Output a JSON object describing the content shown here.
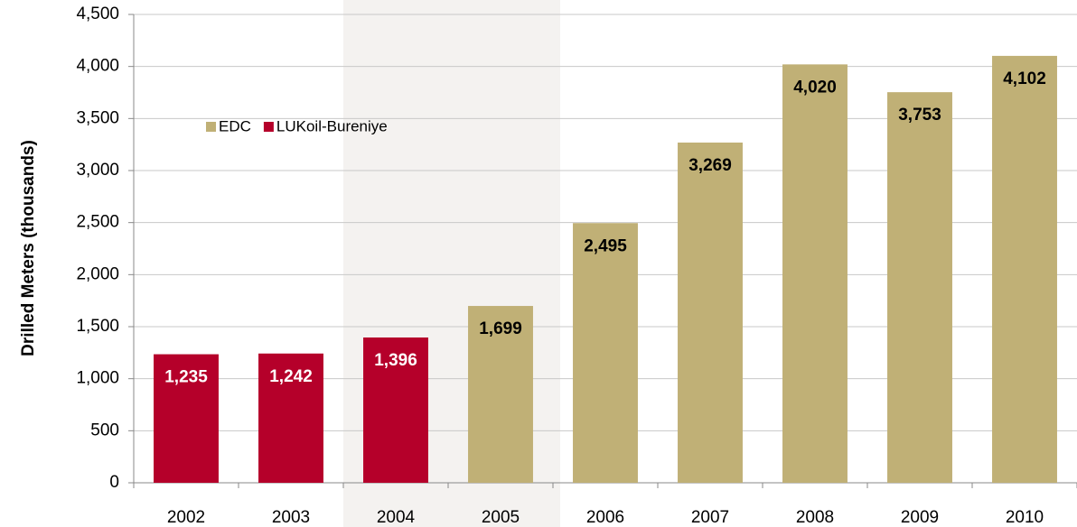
{
  "chart_data": {
    "type": "bar",
    "y_label": "Drilled Meters  (thousands)",
    "categories": [
      "2002",
      "2003",
      "2004",
      "2005",
      "2006",
      "2007",
      "2008",
      "2009",
      "2010"
    ],
    "series": [
      {
        "name": "EDC",
        "color": "#c0b076",
        "label_color": "#000000",
        "values": [
          null,
          null,
          null,
          1699,
          2495,
          3269,
          4020,
          3753,
          4102
        ],
        "value_labels": [
          null,
          null,
          null,
          "1,699",
          "2,495",
          "3,269",
          "4,020",
          "3,753",
          "4,102"
        ]
      },
      {
        "name": "LUKoil-Bureniye",
        "color": "#b5002a",
        "label_color": "#ffffff",
        "values": [
          1235,
          1242,
          1396,
          null,
          null,
          null,
          null,
          null,
          null
        ],
        "value_labels": [
          "1,235",
          "1,242",
          "1,396",
          null,
          null,
          null,
          null,
          null,
          null
        ]
      }
    ],
    "ylim": [
      0,
      4500
    ],
    "yticks": [
      0,
      500,
      {
        "value": 1000,
        "label": "1,000"
      },
      {
        "value": 1500,
        "label": "1,500"
      },
      {
        "value": 2000,
        "label": "2,000"
      },
      {
        "value": 2500,
        "label": "2,500"
      },
      {
        "value": 3000,
        "label": "3,000"
      },
      {
        "value": 3500,
        "label": "3,500"
      },
      {
        "value": 4000,
        "label": "4,000"
      },
      {
        "value": 4500,
        "label": "4,500"
      }
    ],
    "grid": true,
    "legend": "upper-left"
  }
}
